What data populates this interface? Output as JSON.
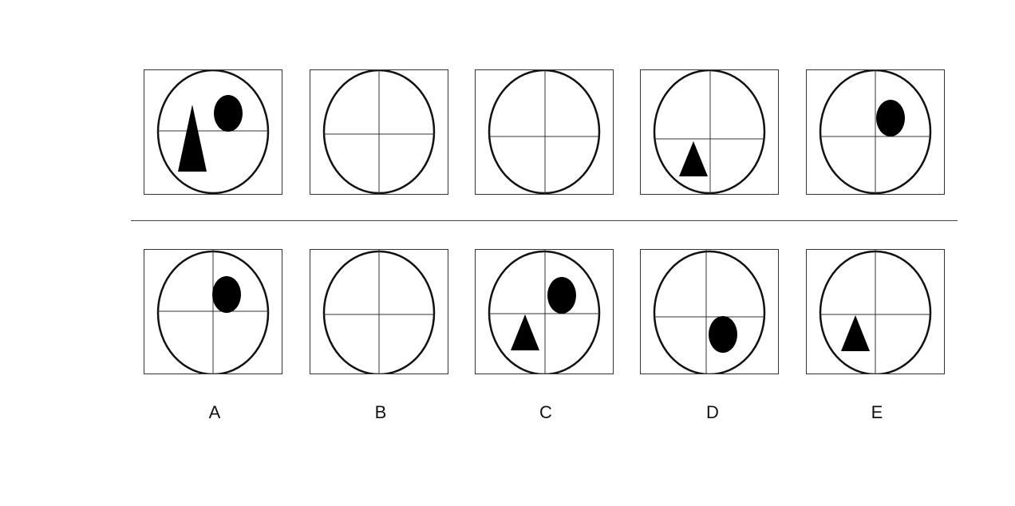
{
  "question_row": [
    {
      "hlines": [
        "mid"
      ],
      "vlines": [],
      "shapes": [
        "circle-upper-right-straddle",
        "triangle-lower-left"
      ]
    },
    {
      "hlines": [
        "mid"
      ],
      "vlines": [
        "mid"
      ],
      "shapes": []
    },
    {
      "hlines": [
        "mid"
      ],
      "vlines": [
        "mid"
      ],
      "shapes": []
    },
    {
      "hlines": [
        "mid"
      ],
      "vlines": [
        "mid"
      ],
      "shapes": [
        "triangle-lower-left"
      ]
    },
    {
      "hlines": [
        "mid"
      ],
      "vlines": [
        "mid"
      ],
      "shapes": [
        "circle-upper-right"
      ]
    }
  ],
  "answer_row": [
    {
      "label": "A",
      "shapes": [
        "circle-upper-right"
      ]
    },
    {
      "label": "B",
      "shapes": []
    },
    {
      "label": "C",
      "shapes": [
        "circle-upper-right",
        "triangle-lower-left"
      ]
    },
    {
      "label": "D",
      "shapes": [
        "circle-lower-right"
      ]
    },
    {
      "label": "E",
      "shapes": [
        "triangle-lower-left"
      ]
    }
  ]
}
